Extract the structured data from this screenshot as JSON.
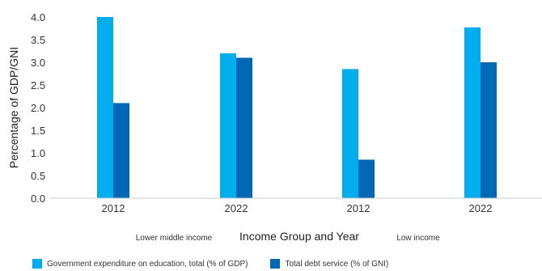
{
  "chart_data": {
    "type": "bar",
    "xlabel": "Income Group and Year",
    "ylabel": "Percentage of GDP/GNI",
    "ylim": [
      0,
      4.0
    ],
    "yticks": [
      "0.0",
      "0.5",
      "1.0",
      "1.5",
      "2.0",
      "2.5",
      "3.0",
      "3.5",
      "4.0"
    ],
    "categories": [
      "2012",
      "2022",
      "2012",
      "2022"
    ],
    "groups": [
      "Lower middle income",
      "Low income"
    ],
    "series": [
      {
        "name": "Government expenditure on education, total (% of GDP)",
        "color": "#00aeef",
        "values": [
          4.0,
          3.2,
          2.85,
          3.77
        ]
      },
      {
        "name": "Total debt service (% of GNI)",
        "color": "#0068b5",
        "values": [
          2.1,
          3.1,
          0.85,
          3.0
        ]
      }
    ],
    "legend_position": "bottom-left",
    "grid": false
  }
}
